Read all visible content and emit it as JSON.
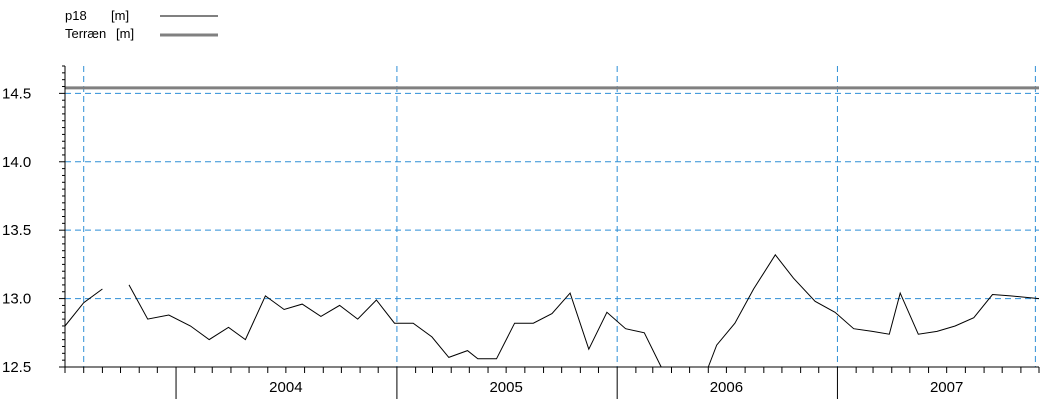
{
  "chart_data": {
    "type": "line",
    "title": "",
    "xlabel": "",
    "ylabel": "",
    "ylim": [
      12.5,
      14.7
    ],
    "xlim": [
      "2003-07-01",
      "2007-12-01"
    ],
    "grid": true,
    "grid_color": "#2f8fd6",
    "legend_position": "top-left",
    "legend": [
      {
        "name": "p18",
        "unit": "[m]",
        "color": "#000000"
      },
      {
        "name": "Terræn",
        "unit": "[m]",
        "color": "#808080"
      }
    ],
    "y_ticks": [
      12.5,
      13.0,
      13.5,
      14.0,
      14.5
    ],
    "y_tick_labels": [
      "12.5",
      "13.0",
      "13.5",
      "14.0",
      "14.5"
    ],
    "x_year_labels": [
      {
        "label": "2004",
        "date": "2004-07-01"
      },
      {
        "label": "2005",
        "date": "2005-07-01"
      },
      {
        "label": "2006",
        "date": "2006-07-01"
      },
      {
        "label": "2007",
        "date": "2007-07-01"
      }
    ],
    "x_year_boundaries": [
      "2004-01-01",
      "2005-01-01",
      "2006-01-01",
      "2007-01-01"
    ],
    "v_grid_dates": [
      "2003-08-01",
      "2005-01-01",
      "2006-01-01",
      "2007-01-01",
      "2007-11-25"
    ],
    "series": [
      {
        "name": "p18",
        "unit": "[m]",
        "color": "#000000",
        "segments": [
          [
            [
              "2003-07-01",
              12.8
            ],
            [
              "2003-08-01",
              12.97
            ],
            [
              "2003-09-01",
              13.07
            ]
          ],
          [
            [
              "2003-10-15",
              13.1
            ],
            [
              "2003-11-15",
              12.85
            ],
            [
              "2003-12-20",
              12.88
            ],
            [
              "2004-01-25",
              12.8
            ],
            [
              "2004-02-25",
              12.7
            ],
            [
              "2004-03-28",
              12.79
            ],
            [
              "2004-04-25",
              12.7
            ],
            [
              "2004-05-28",
              13.02
            ],
            [
              "2004-06-28",
              12.92
            ],
            [
              "2004-07-28",
              12.96
            ],
            [
              "2004-08-28",
              12.87
            ],
            [
              "2004-09-28",
              12.95
            ],
            [
              "2004-10-28",
              12.85
            ],
            [
              "2004-11-28",
              12.99
            ],
            [
              "2004-12-28",
              12.82
            ],
            [
              "2005-01-28",
              12.82
            ],
            [
              "2005-02-28",
              12.72
            ],
            [
              "2005-03-28",
              12.57
            ],
            [
              "2005-04-28",
              12.62
            ],
            [
              "2005-05-15",
              12.56
            ],
            [
              "2005-06-15",
              12.56
            ],
            [
              "2005-07-15",
              12.82
            ],
            [
              "2005-08-15",
              12.82
            ],
            [
              "2005-09-15",
              12.89
            ],
            [
              "2005-10-15",
              13.04
            ],
            [
              "2005-11-15",
              12.63
            ],
            [
              "2005-12-15",
              12.9
            ],
            [
              "2006-01-15",
              12.78
            ],
            [
              "2006-02-15",
              12.75
            ],
            [
              "2006-03-15",
              12.5
            ],
            [
              "2006-04-10",
              12.5
            ]
          ],
          [
            [
              "2006-06-01",
              12.5
            ],
            [
              "2006-06-15",
              12.66
            ],
            [
              "2006-07-15",
              12.82
            ],
            [
              "2006-08-15",
              13.07
            ],
            [
              "2006-09-20",
              13.32
            ],
            [
              "2006-10-20",
              13.15
            ],
            [
              "2006-11-25",
              12.98
            ],
            [
              "2006-12-28",
              12.9
            ],
            [
              "2007-01-28",
              12.78
            ],
            [
              "2007-02-28",
              12.76
            ],
            [
              "2007-03-28",
              12.74
            ],
            [
              "2007-04-15",
              13.04
            ],
            [
              "2007-05-15",
              12.74
            ],
            [
              "2007-06-15",
              12.76
            ],
            [
              "2007-07-15",
              12.8
            ],
            [
              "2007-08-15",
              12.86
            ],
            [
              "2007-09-15",
              13.03
            ],
            [
              "2007-10-15",
              13.02
            ],
            [
              "2007-12-01",
              13.0
            ]
          ]
        ]
      },
      {
        "name": "Terræn",
        "unit": "[m]",
        "color": "#808080",
        "constant": 14.54
      }
    ]
  }
}
